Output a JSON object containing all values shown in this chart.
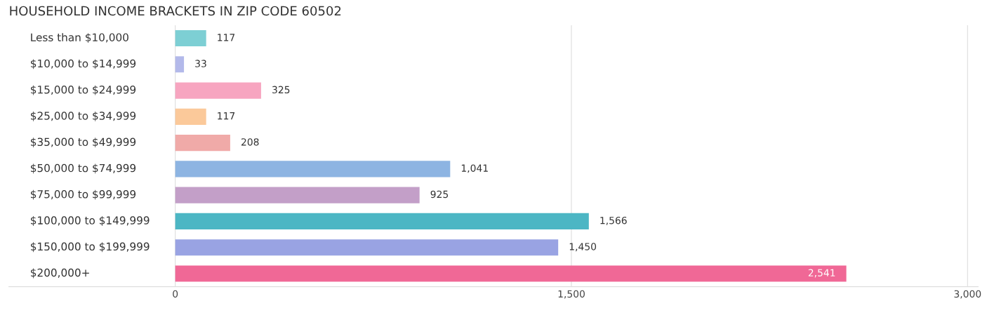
{
  "chart_data": {
    "type": "bar",
    "orientation": "horizontal",
    "title": "HOUSEHOLD INCOME BRACKETS IN ZIP CODE 60502",
    "categories": [
      "Less than $10,000",
      "$10,000 to $14,999",
      "$15,000 to $24,999",
      "$25,000 to $34,999",
      "$35,000 to $49,999",
      "$50,000 to $74,999",
      "$75,000 to $99,999",
      "$100,000 to $149,999",
      "$150,000 to $199,999",
      "$200,000+"
    ],
    "values": [
      117,
      33,
      325,
      117,
      208,
      1041,
      925,
      1566,
      1450,
      2541
    ],
    "value_labels": [
      "117",
      "33",
      "325",
      "117",
      "208",
      "1,041",
      "925",
      "1,566",
      "1,450",
      "2,541"
    ],
    "colors": [
      "#7dcfd4",
      "#b3b9ea",
      "#f7a5c0",
      "#fbc99a",
      "#f0aaa8",
      "#8db4e2",
      "#c39fc8",
      "#4cb6c4",
      "#99a3e3",
      "#f06896"
    ],
    "xlim": [
      -630,
      3040
    ],
    "xticks": [
      0,
      {
        "value": 1500,
        "label": "1,500"
      },
      {
        "value": 3000,
        "label": "3,000"
      }
    ],
    "grid": "x",
    "legend": false
  }
}
